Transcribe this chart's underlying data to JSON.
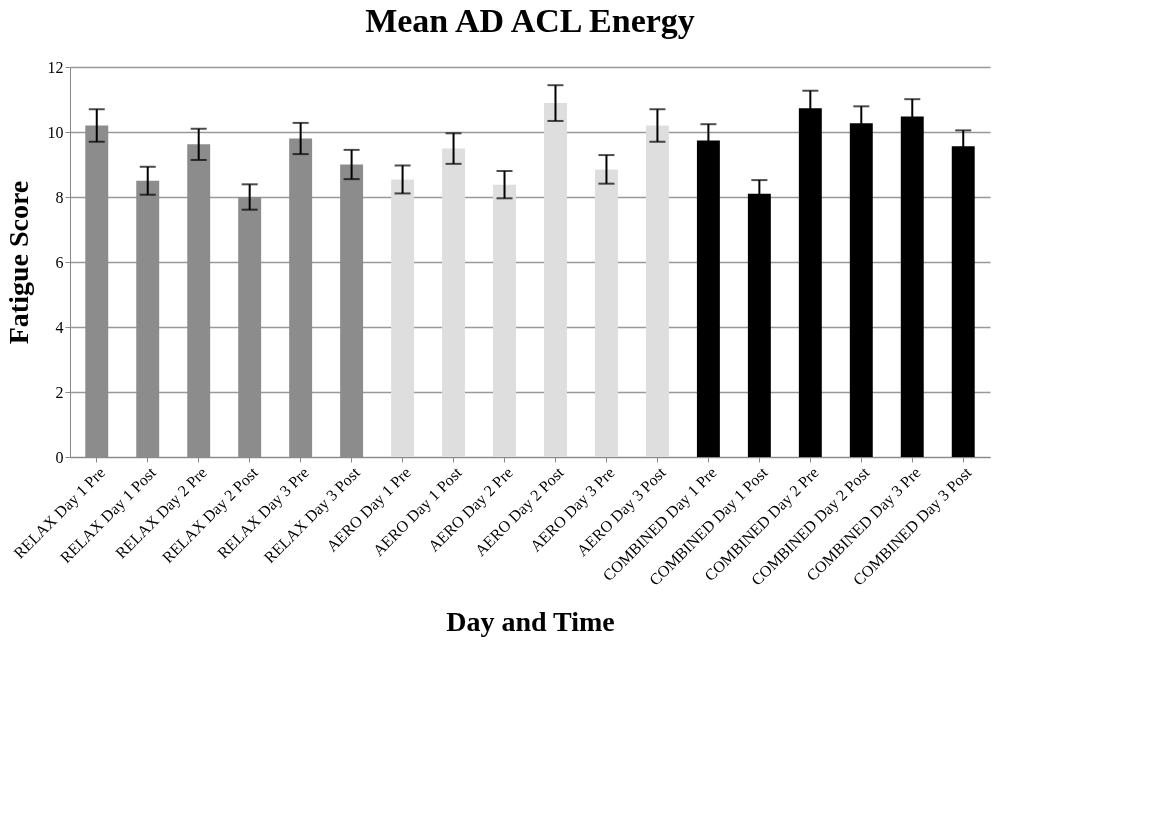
{
  "chart_data": {
    "type": "bar",
    "title": "Mean AD ACL Energy",
    "xlabel": "Day and Time",
    "ylabel": "Fatigue Score",
    "categories": [
      "RELAX Day 1 Pre",
      "RELAX Day 1 Post",
      "RELAX Day 2 Pre",
      "RELAX Day 2 Post",
      "RELAX Day 3 Pre",
      "RELAX Day 3 Post",
      "AERO Day 1 Pre",
      "AERO Day 1 Post",
      "AERO Day 2 Pre",
      "AERO Day 2 Post",
      "AERO Day 3 Pre",
      "AERO Day 3 Post",
      "COMBINED Day 1 Pre",
      "COMBINED Day 1 Post",
      "COMBINED Day 2 Pre",
      "COMBINED Day 2 Post",
      "COMBINED Day 3 Pre",
      "COMBINED Day 3 Post"
    ],
    "values": [
      10.2,
      8.5,
      9.62,
      8.0,
      9.8,
      9.0,
      8.54,
      9.49,
      8.38,
      10.89,
      8.85,
      10.2,
      9.74,
      8.1,
      10.73,
      10.27,
      10.48,
      9.56
    ],
    "errors": [
      0.5,
      0.43,
      0.48,
      0.39,
      0.48,
      0.45,
      0.43,
      0.47,
      0.42,
      0.55,
      0.44,
      0.5,
      0.5,
      0.42,
      0.54,
      0.52,
      0.53,
      0.49
    ],
    "colors": [
      "#8c8c8c",
      "#8c8c8c",
      "#8c8c8c",
      "#8c8c8c",
      "#8c8c8c",
      "#8c8c8c",
      "#dedede",
      "#dedede",
      "#dedede",
      "#dedede",
      "#dedede",
      "#dedede",
      "#000000",
      "#000000",
      "#000000",
      "#000000",
      "#000000",
      "#000000"
    ],
    "ylim": [
      0,
      12
    ],
    "yticks": [
      0,
      2,
      4,
      6,
      8,
      10,
      12
    ],
    "grid": "y"
  }
}
